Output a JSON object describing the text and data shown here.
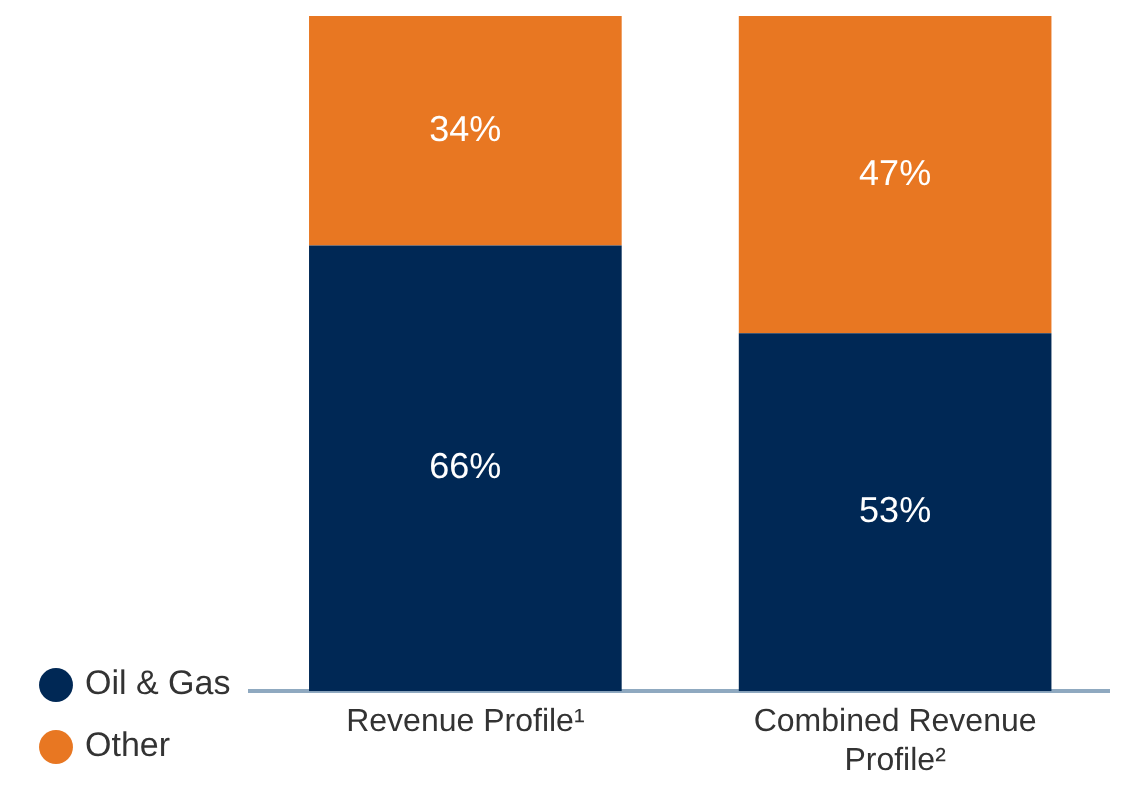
{
  "chart_data": {
    "type": "bar",
    "stacked": true,
    "categories": [
      "Revenue Profile¹",
      "Combined Revenue Profile²"
    ],
    "series": [
      {
        "name": "Oil & Gas",
        "color": "#002855",
        "values": [
          66,
          53
        ],
        "value_labels": [
          "66%",
          "53%"
        ]
      },
      {
        "name": "Other",
        "color": "#e87722",
        "values": [
          34,
          47
        ],
        "value_labels": [
          "34%",
          "47%"
        ]
      }
    ],
    "legend": "bottom left",
    "grid": false,
    "tick_labels": "x"
  }
}
